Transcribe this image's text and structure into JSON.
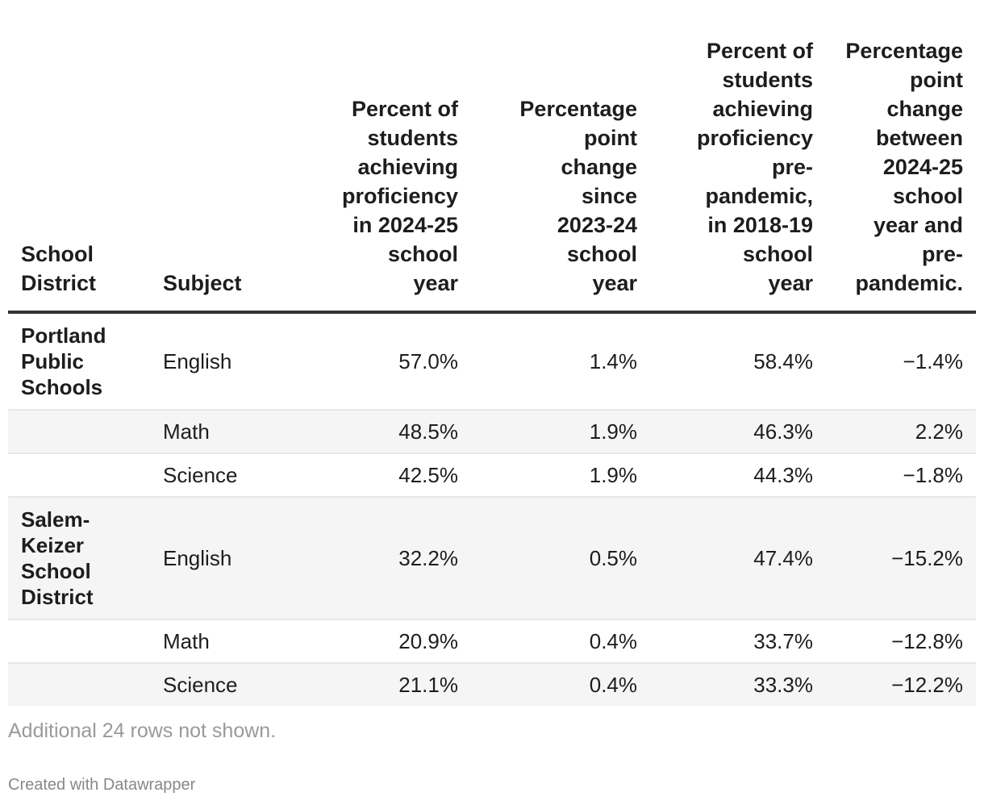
{
  "chart_data": {
    "type": "table",
    "columns": [
      "School District",
      "Subject",
      "Percent of students achieving proficiency in 2024-25 school year",
      "Percentage point change since 2023-24 school year",
      "Percent of students achieving proficiency pre-pandemic, in 2018-19 school year",
      "Percentage point change between 2024-25 school year and pre-pandemic."
    ],
    "rows": [
      [
        "Portland Public Schools",
        "English",
        "57.0%",
        "1.4%",
        "58.4%",
        "−1.4%"
      ],
      [
        "",
        "Math",
        "48.5%",
        "1.9%",
        "46.3%",
        "2.2%"
      ],
      [
        "",
        "Science",
        "42.5%",
        "1.9%",
        "44.3%",
        "−1.8%"
      ],
      [
        "Salem-Keizer School District",
        "English",
        "32.2%",
        "0.5%",
        "47.4%",
        "−15.2%"
      ],
      [
        "",
        "Math",
        "20.9%",
        "0.4%",
        "33.7%",
        "−12.8%"
      ],
      [
        "",
        "Science",
        "21.1%",
        "0.4%",
        "33.3%",
        "−12.2%"
      ]
    ]
  },
  "table": {
    "header_lines": [
      [
        "School",
        "District"
      ],
      [
        "Subject"
      ],
      [
        "Percent of",
        "students",
        "achieving",
        "proficiency",
        "in 2024-25",
        "school",
        "year"
      ],
      [
        "Percentage",
        "point",
        "change",
        "since",
        "2023-24",
        "school",
        "year"
      ],
      [
        "Percent of",
        "students",
        "achieving",
        "proficiency",
        "pre-",
        "pandemic,",
        "in 2018-19",
        "school",
        "year"
      ],
      [
        "Percentage",
        "point",
        "change",
        "between",
        "2024-25",
        "school",
        "year and",
        "pre-",
        "pandemic."
      ]
    ],
    "district_lines": [
      [
        "Portland",
        "Public",
        "Schools"
      ],
      [],
      [],
      [
        "Salem-",
        "Keizer",
        "School",
        "District"
      ],
      [],
      []
    ]
  },
  "footer": {
    "notes": "Additional 24 rows not shown.",
    "credit": "Created with Datawrapper"
  },
  "colors": {
    "text": "#1d1d1d",
    "header_rule": "#333333",
    "row_shade": "#f5f5f5",
    "notes_text": "#9a9a9a"
  }
}
